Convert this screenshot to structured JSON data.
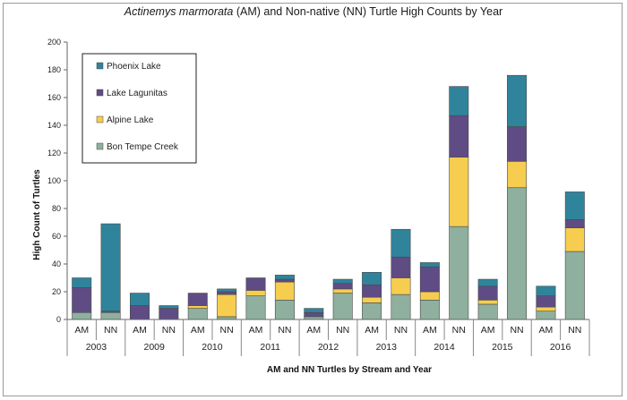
{
  "chart_data": {
    "type": "bar",
    "stacked": true,
    "title": {
      "species": "Actinemys marmorata",
      "rest": " (AM) and Non-native (NN) Turtle High Counts by Year"
    },
    "xlabel": "AM and NN Turtles by Stream and Year",
    "ylabel": "High Count of Turtles",
    "ylim": [
      0,
      200
    ],
    "yticks": [
      0,
      20,
      40,
      60,
      80,
      100,
      120,
      140,
      160,
      180,
      200
    ],
    "grid": false,
    "legend_position": "top-left",
    "years": [
      "2003",
      "2009",
      "2010",
      "2011",
      "2012",
      "2013",
      "2014",
      "2015",
      "2016"
    ],
    "categories": [
      "AM",
      "NN",
      "AM",
      "NN",
      "AM",
      "NN",
      "AM",
      "NN",
      "AM",
      "NN",
      "AM",
      "NN",
      "AM",
      "NN",
      "AM",
      "NN",
      "AM",
      "NN"
    ],
    "series": [
      {
        "name": "Bon Tempe Creek",
        "color": "#8fb09e",
        "values": [
          5,
          5,
          0,
          0,
          8,
          2,
          17,
          14,
          2,
          19,
          12,
          18,
          14,
          67,
          11,
          95,
          6,
          49
        ]
      },
      {
        "name": "Alpine Lake",
        "color": "#f7cd4f",
        "values": [
          0,
          0,
          0,
          0,
          2,
          16,
          4,
          13,
          0,
          3,
          4,
          12,
          6,
          50,
          3,
          19,
          3,
          17
        ]
      },
      {
        "name": "Lake Lagunitas",
        "color": "#5f4c84",
        "values": [
          18,
          1,
          10,
          8,
          9,
          2,
          9,
          2,
          3,
          4,
          9,
          15,
          18,
          30,
          10,
          25,
          8,
          6
        ]
      },
      {
        "name": "Phoenix Lake",
        "color": "#2f849c",
        "values": [
          7,
          63,
          9,
          2,
          0,
          2,
          0,
          3,
          3,
          3,
          9,
          20,
          3,
          21,
          5,
          37,
          7,
          20
        ]
      }
    ],
    "legend_order": [
      "Phoenix Lake",
      "Lake Lagunitas",
      "Alpine Lake",
      "Bon Tempe Creek"
    ]
  }
}
